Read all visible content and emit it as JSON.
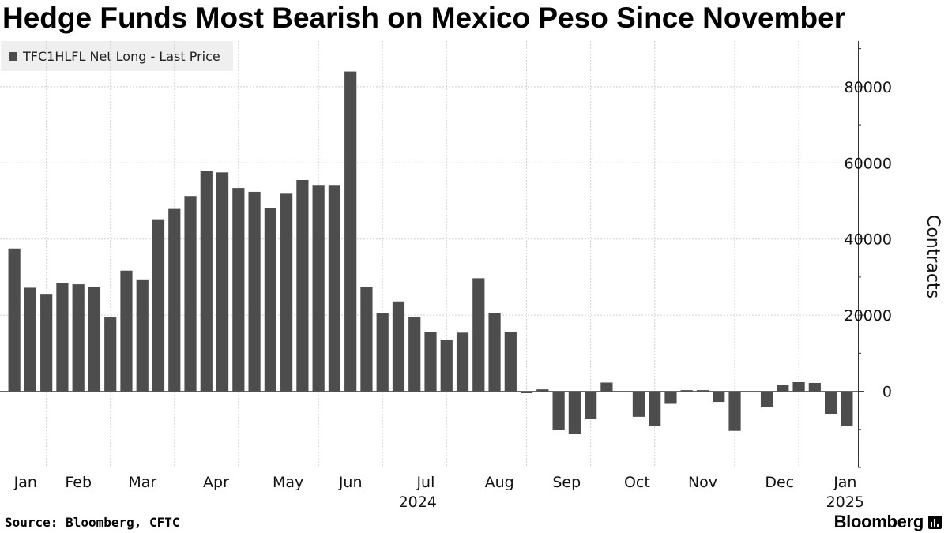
{
  "title": "Hedge Funds Most Bearish on Mexico Peso Since November",
  "legend": {
    "label": "TFC1HLFL Net Long - Last Price",
    "color": "#4d4d4d"
  },
  "source": "Source: Bloomberg, CFTC",
  "brand": "Bloomberg",
  "brand_icon": "bloomberg-terminal-icon",
  "chart_data": {
    "type": "bar",
    "title": "Hedge Funds Most Bearish on Mexico Peso Since November",
    "ylabel": "Contracts",
    "xlabel": "",
    "ylim": [
      -20000,
      92000
    ],
    "yticks": [
      0,
      20000,
      40000,
      60000,
      80000
    ],
    "grid": true,
    "legend_position": "top-left",
    "bar_color": "#4d4d4d",
    "series": [
      {
        "name": "TFC1HLFL Net Long - Last Price",
        "values": [
          37500,
          27200,
          25600,
          28500,
          28100,
          27500,
          19400,
          31700,
          29400,
          45200,
          47900,
          51300,
          57800,
          57500,
          53400,
          52400,
          48200,
          51900,
          55500,
          54200,
          54200,
          84000,
          27400,
          20500,
          23600,
          19600,
          15600,
          13500,
          15400,
          29700,
          20500,
          15600,
          -500,
          500,
          -10200,
          -11200,
          -7200,
          2300,
          -200,
          -6700,
          -9100,
          -3100,
          300,
          300,
          -2800,
          -10400,
          -300,
          -4200,
          1700,
          2400,
          2200,
          -5900,
          -9200
        ]
      }
    ],
    "month_labels": [
      "Jan",
      "Feb",
      "Mar",
      "Apr",
      "May",
      "Jun",
      "Jul",
      "Aug",
      "Sep",
      "Oct",
      "Nov",
      "Dec",
      "Jan"
    ],
    "month_label_bar_index": [
      0.7,
      4.0,
      8.0,
      12.6,
      17.1,
      21.0,
      25.7,
      30.3,
      34.5,
      38.9,
      43.0,
      47.8,
      51.9
    ],
    "month_boundary_bar_index": [
      2.5,
      6.5,
      10.5,
      14.5,
      19.5,
      23.5,
      27.5,
      32.5,
      36.5,
      40.5,
      45.5,
      49.5
    ],
    "year_labels": [
      {
        "label": "2024",
        "bar_index": 25.2
      },
      {
        "label": "2025",
        "bar_index": 51.9
      }
    ]
  }
}
